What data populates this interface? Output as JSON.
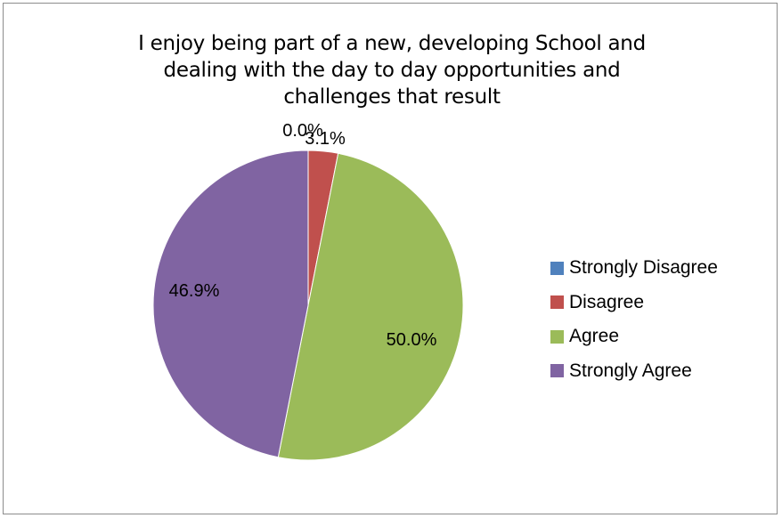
{
  "chart_data": {
    "type": "pie",
    "title_lines": [
      "I enjoy being part of a new, developing School and",
      "dealing with the day to day opportunities and",
      "challenges that result"
    ],
    "categories": [
      "Strongly Disagree",
      "Disagree",
      "Agree",
      "Strongly Agree"
    ],
    "values": [
      0.0,
      3.1,
      50.0,
      46.9
    ],
    "data_labels": [
      "0.0%",
      "3.1%",
      "50.0%",
      "46.9%"
    ],
    "colors": [
      "#4f81bd",
      "#c0504d",
      "#9bbb59",
      "#8064a2"
    ],
    "legend_position": "right",
    "start_angle": "12 o'clock",
    "direction": "clockwise"
  }
}
